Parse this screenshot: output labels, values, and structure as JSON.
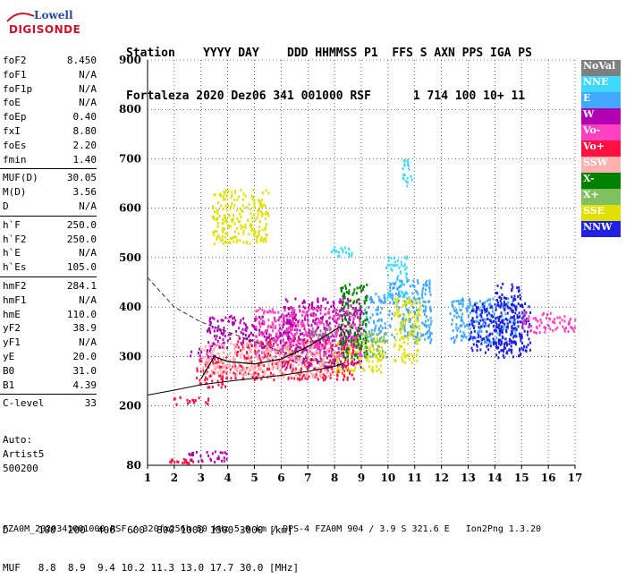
{
  "logo": {
    "top": "Lowell",
    "bottom": "DIGISONDE"
  },
  "header": {
    "row1": "Station    YYYY DAY    DDD HHMMSS P1  FFS S AXN PPS IGA PS",
    "row2": "Fortaleza 2020 Dez06 341 001000 RSF      1 714 100 10+ 11"
  },
  "params": [
    {
      "name": "foF2",
      "value": "8.450"
    },
    {
      "name": "foF1",
      "value": "N/A"
    },
    {
      "name": "foF1p",
      "value": "N/A"
    },
    {
      "name": "foE",
      "value": "N/A"
    },
    {
      "name": "foEp",
      "value": "0.40"
    },
    {
      "name": "fxI",
      "value": "8.80"
    },
    {
      "name": "foEs",
      "value": "2.20"
    },
    {
      "name": "fmin",
      "value": "1.40"
    },
    {
      "name": "MUF(D)",
      "value": "30.05"
    },
    {
      "name": "M(D)",
      "value": "3.56"
    },
    {
      "name": "D",
      "value": "N/A"
    },
    {
      "name": "h`F",
      "value": "250.0"
    },
    {
      "name": "h`F2",
      "value": "250.0"
    },
    {
      "name": "h`E",
      "value": "N/A"
    },
    {
      "name": "h`Es",
      "value": "105.0"
    },
    {
      "name": "hmF2",
      "value": "284.1"
    },
    {
      "name": "hmF1",
      "value": "N/A"
    },
    {
      "name": "hmE",
      "value": "110.0"
    },
    {
      "name": "yF2",
      "value": "38.9"
    },
    {
      "name": "yF1",
      "value": "N/A"
    },
    {
      "name": "yE",
      "value": "20.0"
    },
    {
      "name": "B0",
      "value": "31.0"
    },
    {
      "name": "B1",
      "value": "4.39"
    },
    {
      "name": "C-level",
      "value": "33"
    }
  ],
  "artist": {
    "line1": "Auto:",
    "line2": "Artist5",
    "line3": "500200"
  },
  "legend": [
    {
      "label": "NoVal",
      "color": "#7f7f7f"
    },
    {
      "label": "NNE",
      "color": "#40d8ff"
    },
    {
      "label": "E",
      "color": "#40a8ff"
    },
    {
      "label": "W",
      "color": "#b000b0"
    },
    {
      "label": "Vo-",
      "color": "#ff40c0"
    },
    {
      "label": "Vo+",
      "color": "#ff1040"
    },
    {
      "label": "SSW",
      "color": "#ffb0b0"
    },
    {
      "label": "X-",
      "color": "#008000"
    },
    {
      "label": "X+",
      "color": "#80c060"
    },
    {
      "label": "SSE",
      "color": "#e0e000"
    },
    {
      "label": "NNW",
      "color": "#2020e0"
    }
  ],
  "bottom": {
    "d_row": "D     100  200  400  600  800 1000 1500 3000 [km]",
    "muf_row": "MUF   8.8  8.9  9.4 10.2 11.3 13.0 17.7 30.0 [MHz]"
  },
  "footer": "FZA0M_2020341001000.RSF / 320fx256h 50 kHz 5.0 km / DPS-4 FZA0M 904 / 3.9 S 321.6 E   Ion2Png 1.3.20",
  "chart_data": {
    "type": "scatter",
    "title": "",
    "xlabel": "",
    "ylabel": "",
    "xlim": [
      1,
      17
    ],
    "ylim": [
      80,
      900
    ],
    "xticks": [
      "1",
      "2",
      "3",
      "4",
      "5",
      "6",
      "7",
      "8",
      "9",
      "10",
      "11",
      "12",
      "13",
      "14",
      "15",
      "16",
      "17"
    ],
    "yticks": [
      "900",
      "800",
      "700",
      "600",
      "500",
      "400",
      "300",
      "200",
      "80"
    ],
    "grid": true,
    "legend_position": "right",
    "series": [
      {
        "name": "Vo+",
        "color": "#ff1040",
        "clusters": [
          [
            1.7,
            2.7,
            85,
            95
          ],
          [
            2.8,
            4.2,
            240,
            300
          ],
          [
            4.2,
            8.8,
            255,
            340
          ],
          [
            1.9,
            3.3,
            205,
            220
          ]
        ]
      },
      {
        "name": "W",
        "color": "#b000b0",
        "clusters": [
          [
            3.2,
            6.5,
            320,
            385
          ],
          [
            2.5,
            3.5,
            300,
            320
          ],
          [
            6,
            9,
            280,
            420
          ],
          [
            2.5,
            4,
            88,
            110
          ]
        ]
      },
      {
        "name": "NNE",
        "color": "#40d8ff",
        "clusters": [
          [
            7.8,
            8.7,
            505,
            525
          ],
          [
            9.9,
            10.7,
            420,
            505
          ],
          [
            10.5,
            10.9,
            640,
            700
          ]
        ]
      },
      {
        "name": "E",
        "color": "#40a8ff",
        "clusters": [
          [
            10,
            11.6,
            330,
            460
          ],
          [
            12.3,
            14.8,
            330,
            420
          ],
          [
            9.1,
            9.9,
            330,
            430
          ]
        ]
      },
      {
        "name": "NNW",
        "color": "#2020e0",
        "clusters": [
          [
            13,
            15.3,
            310,
            410
          ],
          [
            14,
            15,
            300,
            450
          ]
        ]
      },
      {
        "name": "SSE",
        "color": "#e0e000",
        "clusters": [
          [
            3.4,
            5.5,
            530,
            640
          ],
          [
            8,
            9.8,
            270,
            340
          ],
          [
            10.2,
            11.2,
            290,
            420
          ]
        ]
      },
      {
        "name": "Vo-",
        "color": "#ff40c0",
        "clusters": [
          [
            15,
            17,
            350,
            390
          ],
          [
            5,
            9,
            300,
            400
          ]
        ]
      },
      {
        "name": "X-",
        "color": "#008000",
        "clusters": [
          [
            8.2,
            9.2,
            300,
            450
          ]
        ]
      },
      {
        "name": "X+",
        "color": "#80c060",
        "clusters": [
          [
            9,
            10,
            300,
            350
          ]
        ]
      },
      {
        "name": "SSW",
        "color": "#ffb0b0",
        "clusters": [
          [
            3,
            8,
            260,
            330
          ]
        ]
      },
      {
        "name": "NoVal",
        "color": "#7f7f7f",
        "clusters": [
          [
            7,
            8,
            340,
            360
          ]
        ]
      }
    ]
  }
}
